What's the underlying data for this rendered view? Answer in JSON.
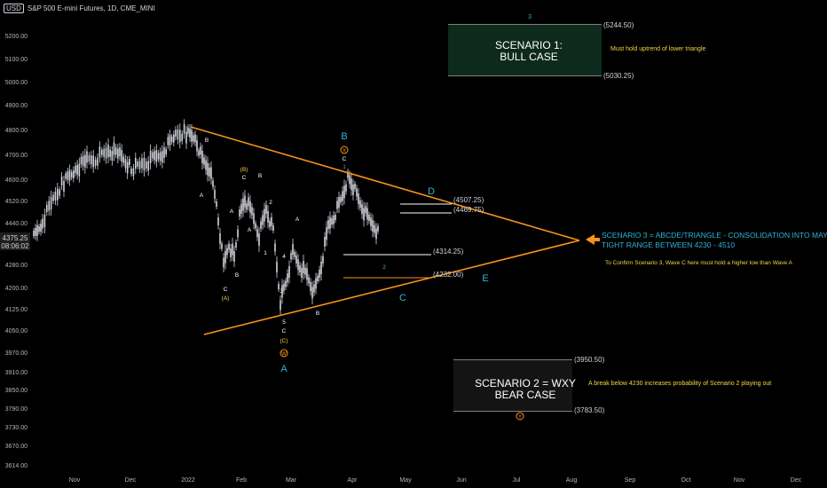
{
  "header": {
    "currency": "USD",
    "symbol": "S&P 500 E-mini Futures, 1D, CME_MINI"
  },
  "price_tag": {
    "price": "4375.25",
    "countdown": "08:06:02"
  },
  "colors": {
    "orange": "#f7931a",
    "white": "#ffffff",
    "cyan": "#2bb7d4",
    "yellow": "#f5d547",
    "green_box": "#0d2a1c",
    "gray_box": "#141414",
    "candle": "#d1d4dc"
  },
  "chart_data": {
    "type": "candlestick",
    "yticks": [
      "5200.00",
      "5100.00",
      "5000.00",
      "4900.00",
      "4800.00",
      "4700.00",
      "4600.00",
      "4520.00",
      "4440.00",
      "4360.00",
      "4280.00",
      "4200.00",
      "4125.00",
      "4050.00",
      "3970.00",
      "3910.00",
      "3850.00",
      "3790.00",
      "3730.00",
      "3670.00",
      "3614.00"
    ],
    "xticks": [
      "Nov",
      "Dec",
      "2022",
      "Feb",
      "Mar",
      "Apr",
      "May",
      "Jun",
      "Jul",
      "Aug",
      "Sep",
      "Oct",
      "Nov",
      "Dec"
    ],
    "levels": [
      "(5244.50)",
      "(5030.25)",
      "(4507.25)",
      "(4469.75)",
      "(4314.25)",
      "(4232.00)",
      "(3950.50)",
      "(3783.50)"
    ],
    "scenario1": {
      "line1": "SCENARIO 1:",
      "line2": "BULL CASE",
      "note": "Must hold uptrend of lower triangle",
      "top_label": "3"
    },
    "scenario2": {
      "line1": "SCENARIO 2 = WXY",
      "line2": "BEAR CASE",
      "note": "A break below 4230 increases probability of Scenario 2 playing out",
      "bottom_label": "Y"
    },
    "scenario3": {
      "line1": "SCENARIO 3 = ABCDE/TRIANGLE - CONSOLIDATION INTO MAY/JUNE",
      "line2": "TIGHT RANGE BETWEEN 4230 - 4510",
      "note": "To Confirm Scenario 3, Wave C here must hold a higher low than Wave A"
    },
    "wave_labels": {
      "A_low": "A",
      "W": "W",
      "C_paren": "(C)",
      "C": "C",
      "five": "5",
      "B_top": "B",
      "X": "X",
      "C_top": "C",
      "one_top": "1",
      "B_bot": "B",
      "C_cyan": "C",
      "D": "D",
      "E": "E",
      "two_cyan": "2",
      "B_dec": "B",
      "A_dec": "A",
      "A_paren": "(A)",
      "C_jan": "C",
      "B_jan": "B",
      "A_jan": "A",
      "B_paren": "(B)",
      "C_feb": "C",
      "B_feb": "B",
      "A_feb": "A",
      "two": "2",
      "one": "1",
      "four": "4",
      "three": "3",
      "A_mar": "A"
    }
  }
}
